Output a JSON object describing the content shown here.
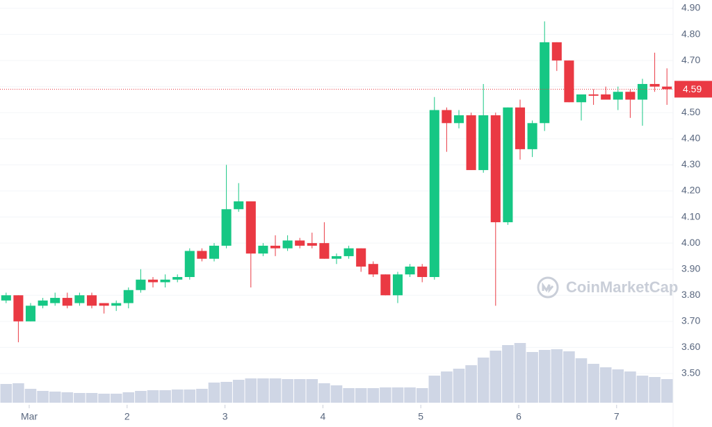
{
  "chart_data": {
    "type": "candlestick",
    "watermark": "CoinMarketCap",
    "categories": [
      null,
      null,
      "Mar",
      null,
      null,
      null,
      null,
      null,
      null,
      null,
      "2",
      null,
      null,
      null,
      null,
      null,
      null,
      null,
      "3",
      null,
      null,
      null,
      null,
      null,
      null,
      null,
      "4",
      null,
      null,
      null,
      null,
      null,
      null,
      null,
      "5",
      null,
      null,
      null,
      null,
      null,
      null,
      null,
      "6",
      null,
      null,
      null,
      null,
      null,
      null,
      null,
      "7",
      null,
      null,
      null,
      null
    ],
    "open": [
      3.78,
      3.8,
      3.7,
      3.76,
      3.77,
      3.79,
      3.77,
      3.8,
      3.77,
      3.76,
      3.77,
      3.82,
      3.86,
      3.85,
      3.86,
      3.87,
      3.97,
      3.94,
      3.99,
      4.13,
      4.16,
      3.96,
      3.99,
      3.98,
      4.01,
      4.0,
      4.0,
      3.94,
      3.95,
      3.98,
      3.92,
      3.88,
      3.8,
      3.88,
      3.91,
      3.87,
      4.51,
      4.46,
      4.49,
      4.28,
      4.49,
      4.08,
      4.52,
      4.36,
      4.46,
      4.77,
      4.7,
      4.54,
      4.57,
      4.57,
      4.55,
      4.58,
      4.55,
      4.61,
      4.6
    ],
    "high": [
      3.81,
      3.8,
      3.77,
      3.79,
      3.81,
      3.81,
      3.81,
      3.81,
      3.77,
      3.78,
      3.83,
      3.9,
      3.87,
      3.88,
      3.88,
      3.98,
      3.98,
      4.0,
      4.3,
      4.23,
      4.16,
      4.0,
      4.03,
      4.03,
      4.02,
      4.04,
      4.08,
      3.96,
      3.99,
      3.98,
      3.93,
      3.88,
      3.89,
      3.92,
      3.92,
      4.56,
      4.52,
      4.51,
      4.5,
      4.61,
      4.5,
      4.52,
      4.55,
      4.47,
      4.85,
      4.77,
      4.7,
      4.57,
      4.59,
      4.6,
      4.6,
      4.59,
      4.63,
      4.73,
      4.67
    ],
    "low": [
      3.77,
      3.62,
      3.7,
      3.75,
      3.76,
      3.75,
      3.76,
      3.75,
      3.73,
      3.74,
      3.75,
      3.81,
      3.83,
      3.83,
      3.85,
      3.86,
      3.93,
      3.93,
      3.98,
      4.12,
      3.83,
      3.95,
      3.95,
      3.97,
      3.98,
      3.98,
      3.94,
      3.92,
      3.94,
      3.89,
      3.87,
      3.8,
      3.77,
      3.87,
      3.85,
      3.86,
      4.35,
      4.44,
      4.28,
      4.27,
      3.76,
      4.07,
      4.32,
      4.33,
      4.43,
      4.66,
      4.54,
      4.47,
      4.53,
      4.55,
      4.51,
      4.48,
      4.45,
      4.58,
      4.53
    ],
    "close": [
      3.8,
      3.7,
      3.76,
      3.78,
      3.79,
      3.76,
      3.8,
      3.76,
      3.76,
      3.77,
      3.82,
      3.86,
      3.85,
      3.86,
      3.87,
      3.97,
      3.94,
      3.99,
      4.13,
      4.16,
      3.96,
      3.99,
      3.98,
      4.01,
      3.99,
      3.99,
      3.94,
      3.95,
      3.98,
      3.91,
      3.88,
      3.8,
      3.88,
      3.91,
      3.87,
      4.51,
      4.46,
      4.49,
      4.28,
      4.49,
      4.08,
      4.52,
      4.36,
      4.46,
      4.77,
      4.7,
      4.54,
      4.57,
      4.565,
      4.55,
      4.58,
      4.55,
      4.61,
      4.6,
      4.59
    ],
    "up_color": "#16c784",
    "down_color": "#ea3943",
    "volume": {
      "color": "#cfd6e5",
      "axis": "y2",
      "values": [
        27,
        28,
        20,
        17,
        16,
        15,
        14,
        14,
        13,
        13,
        15,
        17,
        18,
        18,
        19,
        19,
        20,
        29,
        30,
        33,
        35,
        35,
        35,
        34,
        34,
        34,
        28,
        25,
        21,
        21,
        21,
        22,
        22,
        22,
        21,
        39,
        45,
        49,
        54,
        65,
        75,
        83,
        86,
        73,
        76,
        77,
        74,
        64,
        56,
        51,
        48,
        45,
        39,
        37,
        34
      ]
    },
    "y2lim": [
      0,
      100
    ],
    "last_price": 4.59,
    "ylim": [
      3.5,
      4.9
    ],
    "yticks": [
      {
        "value": 3.5,
        "label": "3.50"
      },
      {
        "value": 3.6,
        "label": "3.60"
      },
      {
        "value": 3.7,
        "label": "3.70"
      },
      {
        "value": 3.8,
        "label": "3.80"
      },
      {
        "value": 3.9,
        "label": "3.90"
      },
      {
        "value": 4.0,
        "label": "4.00"
      },
      {
        "value": 4.1,
        "label": "4.10"
      },
      {
        "value": 4.2,
        "label": "4.20"
      },
      {
        "value": 4.3,
        "label": "4.30"
      },
      {
        "value": 4.4,
        "label": "4.40"
      },
      {
        "value": 4.5,
        "label": "4.50"
      },
      {
        "value": 4.6,
        "label": "4.60"
      },
      {
        "value": 4.7,
        "label": "4.70"
      },
      {
        "value": 4.8,
        "label": "4.80"
      },
      {
        "value": 4.9,
        "label": "4.90"
      }
    ],
    "grid": true
  }
}
